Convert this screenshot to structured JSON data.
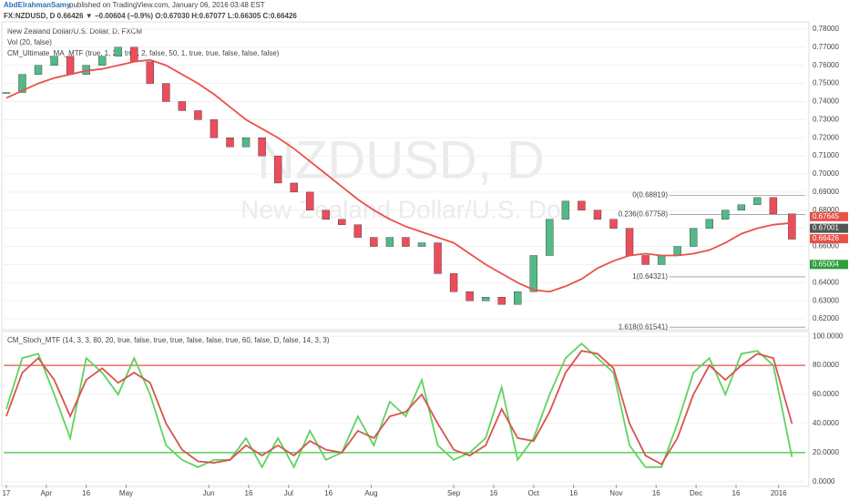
{
  "header": {
    "author": "AbdElrahmanSamy",
    "published": "published on TradingView.com, January 06, 2016 03:48 EST",
    "quote": "FX:NZDUSD, D 0.66426 ▼ −0.00604 (−0.9%) O:0.67030 H:0.67077 L:0.66305 C:0.66426"
  },
  "chart_data": [
    {
      "type": "candlestick",
      "title": "New Zealand Dollar/U.S. Dollar, D, FXCM",
      "subtitle": "Vol (20, false)",
      "indicator": "CM_Ultimate_MA_MTF (true, 1, 20, true, 2, false, 50, 1, true, true, false, false, false)",
      "watermark": "NZDUSD, D",
      "watermark_sub": "New Zealand Dollar/U.S. Do",
      "x": [
        0,
        6,
        12,
        18,
        24,
        30,
        36,
        42,
        48,
        54,
        60,
        66,
        72,
        78,
        84,
        90,
        96,
        102,
        108,
        114,
        120,
        126,
        132,
        138,
        144,
        150,
        156,
        162,
        168,
        174,
        180,
        186,
        192,
        198,
        204,
        210,
        216,
        222,
        228,
        234,
        240,
        246,
        252,
        258,
        264,
        270,
        276,
        282,
        288,
        295
      ],
      "series": [
        {
          "name": "NZDUSD",
          "values": [
            0.745,
            0.755,
            0.76,
            0.765,
            0.755,
            0.76,
            0.765,
            0.77,
            0.762,
            0.75,
            0.74,
            0.735,
            0.73,
            0.72,
            0.715,
            0.72,
            0.71,
            0.695,
            0.69,
            0.68,
            0.675,
            0.672,
            0.665,
            0.66,
            0.665,
            0.66,
            0.662,
            0.645,
            0.635,
            0.63,
            0.632,
            0.628,
            0.635,
            0.655,
            0.675,
            0.685,
            0.68,
            0.675,
            0.67,
            0.655,
            0.65,
            0.655,
            0.66,
            0.67,
            0.675,
            0.68,
            0.683,
            0.687,
            0.678,
            0.664
          ]
        },
        {
          "name": "MA",
          "color": "#e8514a",
          "values": [
            0.742,
            0.746,
            0.75,
            0.753,
            0.755,
            0.757,
            0.758,
            0.76,
            0.762,
            0.763,
            0.76,
            0.755,
            0.75,
            0.744,
            0.737,
            0.73,
            0.725,
            0.72,
            0.714,
            0.707,
            0.7,
            0.693,
            0.686,
            0.68,
            0.675,
            0.671,
            0.668,
            0.665,
            0.662,
            0.656,
            0.65,
            0.645,
            0.64,
            0.636,
            0.635,
            0.638,
            0.642,
            0.648,
            0.652,
            0.655,
            0.656,
            0.655,
            0.655,
            0.656,
            0.658,
            0.662,
            0.667,
            0.67,
            0.672,
            0.673
          ]
        }
      ],
      "xlim": [
        -1,
        300
      ],
      "ylim": [
        0.615,
        0.783
      ],
      "yticks": [
        {
          "value": 0.62,
          "label": "0.62000"
        },
        {
          "value": 0.63,
          "label": "0.63000"
        },
        {
          "value": 0.64,
          "label": "0.64000"
        },
        {
          "value": 0.65,
          "label": "0.65000"
        },
        {
          "value": 0.66,
          "label": "0.66000"
        },
        {
          "value": 0.67,
          "label": "0.67000"
        },
        {
          "value": 0.68,
          "label": "0.68000"
        },
        {
          "value": 0.69,
          "label": "0.69000"
        },
        {
          "value": 0.7,
          "label": "0.70000"
        },
        {
          "value": 0.71,
          "label": "0.71000"
        },
        {
          "value": 0.72,
          "label": "0.72000"
        },
        {
          "value": 0.73,
          "label": "0.73000"
        },
        {
          "value": 0.74,
          "label": "0.74000"
        },
        {
          "value": 0.75,
          "label": "0.75000"
        },
        {
          "value": 0.76,
          "label": "0.76000"
        },
        {
          "value": 0.77,
          "label": "0.77000"
        },
        {
          "value": 0.78,
          "label": "0.78000"
        }
      ],
      "price_tags": [
        {
          "value": 0.67645,
          "label": "0.67645",
          "color": "#e8514a"
        },
        {
          "value": 0.67001,
          "label": "0.67001",
          "color": "#555555"
        },
        {
          "value": 0.66426,
          "label": "0.66426",
          "color": "#e8514a"
        },
        {
          "value": 0.65004,
          "label": "0.65004",
          "color": "#2e9e3e"
        }
      ],
      "fib": [
        {
          "value": 0.68819,
          "label": "0(0.68819)"
        },
        {
          "value": 0.67758,
          "label": "0.236(0.67758)"
        },
        {
          "value": 0.64321,
          "label": "1(0.64321)"
        },
        {
          "value": 0.61541,
          "label": "1.618(0.61541)"
        }
      ],
      "up_color": "#53b987",
      "down_color": "#eb4d5c"
    },
    {
      "type": "line",
      "title": "CM_Stoch_MTF (14, 3, 3, 80, 20, true, false, true, true, false, false, true, 60, false, D, false, 14, 3, 3)",
      "x": [
        0,
        6,
        12,
        18,
        24,
        30,
        36,
        42,
        48,
        54,
        60,
        66,
        72,
        78,
        84,
        90,
        96,
        102,
        108,
        114,
        120,
        126,
        132,
        138,
        144,
        150,
        156,
        162,
        168,
        174,
        180,
        186,
        192,
        198,
        204,
        210,
        216,
        222,
        228,
        234,
        240,
        246,
        252,
        258,
        264,
        270,
        276,
        282,
        288,
        295
      ],
      "series": [
        {
          "name": "K",
          "color": "#5fd35f",
          "values": [
            50,
            85,
            88,
            60,
            30,
            85,
            75,
            60,
            85,
            60,
            25,
            15,
            10,
            15,
            15,
            30,
            10,
            30,
            10,
            35,
            15,
            20,
            45,
            25,
            55,
            45,
            70,
            25,
            15,
            20,
            30,
            65,
            15,
            30,
            60,
            85,
            95,
            85,
            75,
            25,
            10,
            10,
            40,
            75,
            85,
            60,
            88,
            90,
            80,
            17
          ]
        },
        {
          "name": "D",
          "color": "#d9534f",
          "values": [
            45,
            75,
            85,
            70,
            45,
            70,
            78,
            68,
            75,
            68,
            40,
            22,
            14,
            13,
            15,
            25,
            18,
            25,
            18,
            28,
            22,
            20,
            35,
            30,
            45,
            48,
            60,
            40,
            22,
            18,
            25,
            50,
            30,
            28,
            48,
            75,
            90,
            88,
            78,
            40,
            18,
            12,
            30,
            60,
            80,
            70,
            80,
            88,
            85,
            40
          ]
        }
      ],
      "xlim": [
        -1,
        300
      ],
      "ylim": [
        -2,
        102
      ],
      "levels": [
        {
          "value": 80,
          "color": "#e8514a"
        },
        {
          "value": 20,
          "color": "#3cc43c"
        }
      ],
      "yticks": [
        {
          "value": 0,
          "label": "0.0000"
        },
        {
          "value": 20,
          "label": "20.0000"
        },
        {
          "value": 40,
          "label": "40.0000"
        },
        {
          "value": 60,
          "label": "60.0000"
        },
        {
          "value": 80,
          "label": "80.0000"
        },
        {
          "value": 100,
          "label": "100.0000"
        }
      ],
      "xticks": [
        {
          "value": 0,
          "label": "17"
        },
        {
          "value": 15,
          "label": "Apr"
        },
        {
          "value": 30,
          "label": "16"
        },
        {
          "value": 45,
          "label": "May"
        },
        {
          "value": 76,
          "label": "Jun"
        },
        {
          "value": 91,
          "label": "16"
        },
        {
          "value": 106,
          "label": "Jul"
        },
        {
          "value": 121,
          "label": "16"
        },
        {
          "value": 137,
          "label": "Aug"
        },
        {
          "value": 168,
          "label": "Sep"
        },
        {
          "value": 183,
          "label": "16"
        },
        {
          "value": 198,
          "label": "Oct"
        },
        {
          "value": 213,
          "label": "16"
        },
        {
          "value": 229,
          "label": "Nov"
        },
        {
          "value": 244,
          "label": "16"
        },
        {
          "value": 259,
          "label": "Dec"
        },
        {
          "value": 274,
          "label": "16"
        },
        {
          "value": 290,
          "label": "2016"
        }
      ]
    }
  ]
}
